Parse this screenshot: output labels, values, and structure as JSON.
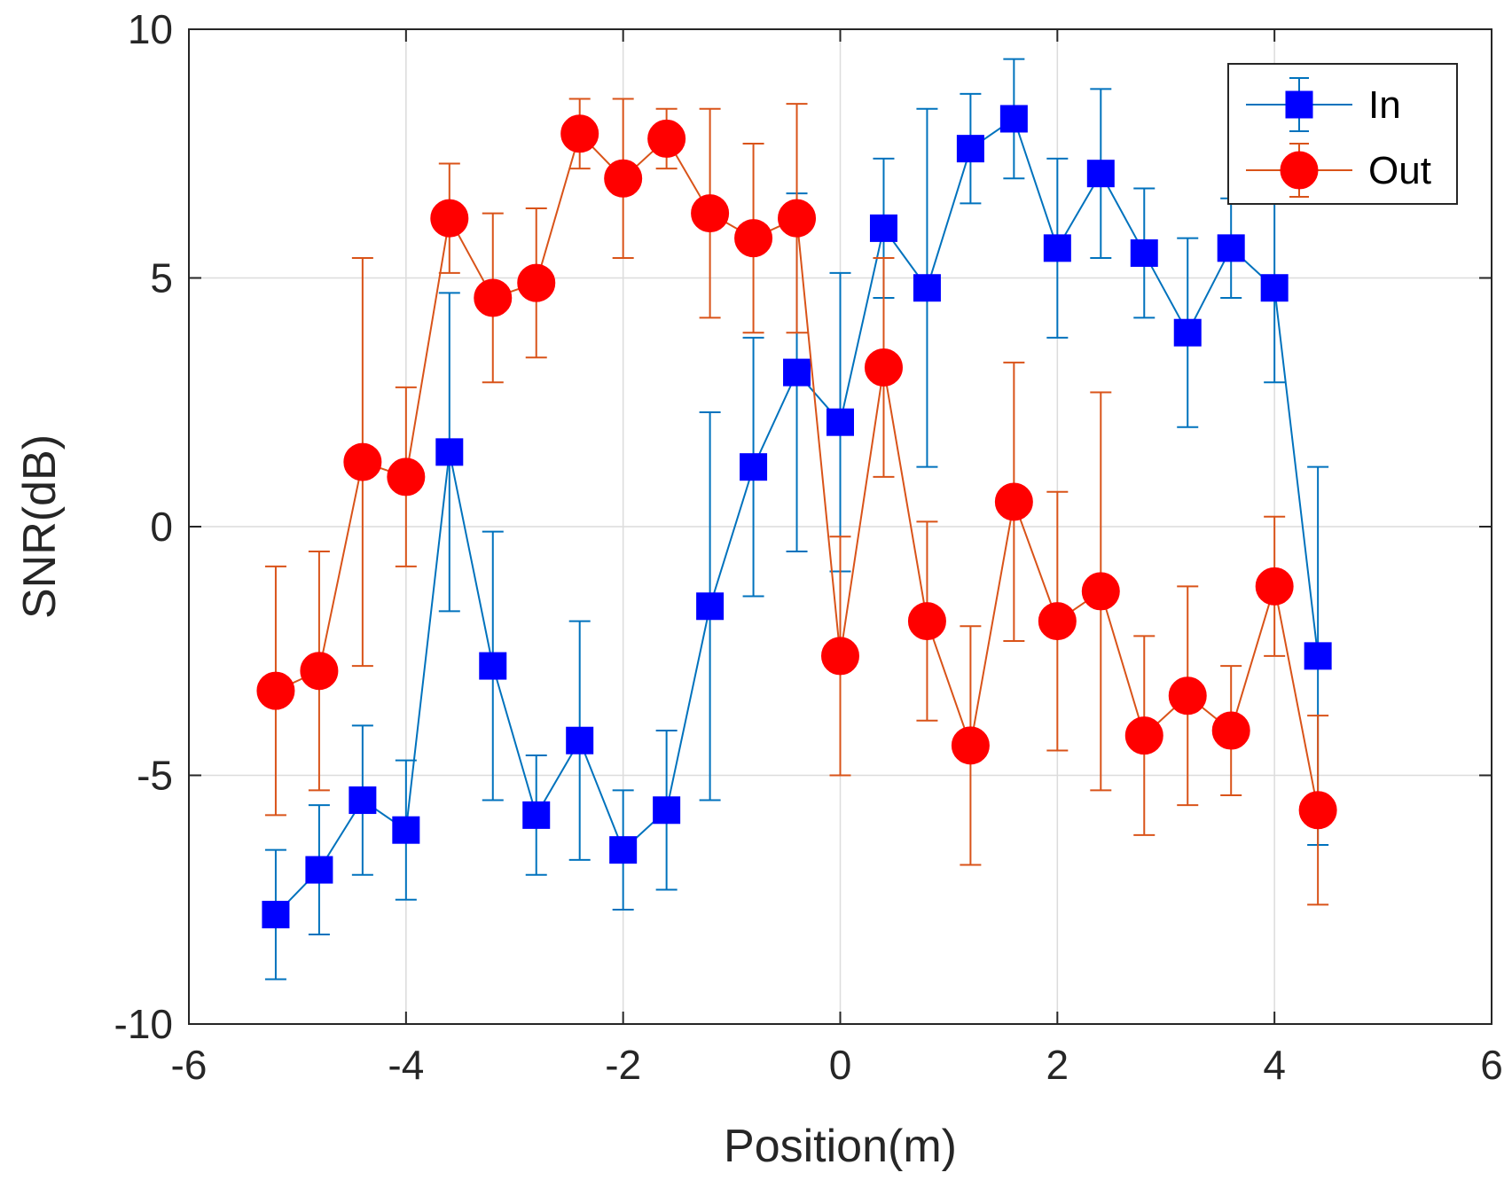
{
  "chart_data": {
    "type": "line",
    "title": "",
    "xlabel": "Position(m)",
    "ylabel": "SNR(dB)",
    "xlim": [
      -6,
      6
    ],
    "ylim": [
      -10,
      10
    ],
    "xticks": [
      -6,
      -4,
      -2,
      0,
      2,
      4,
      6
    ],
    "yticks": [
      -10,
      -5,
      0,
      5,
      10
    ],
    "xtick_labels": [
      "-6",
      "-4",
      "-2",
      "0",
      "2",
      "4",
      "6"
    ],
    "ytick_labels": [
      "-10",
      "-5",
      "0",
      "5",
      "10"
    ],
    "grid": true,
    "legend_position": "top-right",
    "x": [
      -5.2,
      -4.8,
      -4.4,
      -4.0,
      -3.6,
      -3.2,
      -2.8,
      -2.4,
      -2.0,
      -1.6,
      -1.2,
      -0.8,
      -0.4,
      0.0,
      0.4,
      0.8,
      1.2,
      1.6,
      2.0,
      2.4,
      2.8,
      3.2,
      3.6,
      4.0,
      4.4
    ],
    "series": [
      {
        "name": "In",
        "color": "#0072BD",
        "marker": "square",
        "marker_color": "#0000FF",
        "values": [
          -7.8,
          -6.9,
          -5.5,
          -6.1,
          1.5,
          -2.8,
          -5.8,
          -4.3,
          -6.5,
          -5.7,
          -1.6,
          1.2,
          3.1,
          2.1,
          6.0,
          4.8,
          7.6,
          8.2,
          5.6,
          7.1,
          5.5,
          3.9,
          5.6,
          4.8,
          -2.6
        ],
        "err_low": [
          1.3,
          1.3,
          1.5,
          1.4,
          3.2,
          2.7,
          1.2,
          2.4,
          1.2,
          1.6,
          3.9,
          2.6,
          3.6,
          3.0,
          1.4,
          3.6,
          1.1,
          1.2,
          1.8,
          1.7,
          1.3,
          1.9,
          1.0,
          1.9,
          3.8
        ],
        "err_high": [
          1.3,
          1.3,
          1.5,
          1.4,
          3.2,
          2.7,
          1.2,
          2.4,
          1.2,
          1.6,
          3.9,
          2.6,
          3.6,
          3.0,
          1.4,
          3.6,
          1.1,
          1.2,
          1.8,
          1.7,
          1.3,
          1.9,
          1.0,
          1.9,
          3.8
        ]
      },
      {
        "name": "Out",
        "color": "#D95319",
        "marker": "circle",
        "marker_color": "#FF0000",
        "values": [
          -3.3,
          -2.9,
          1.3,
          1.0,
          6.2,
          4.6,
          4.9,
          7.9,
          7.0,
          7.8,
          6.3,
          5.8,
          6.2,
          -2.6,
          3.2,
          -1.9,
          -4.4,
          0.5,
          -1.9,
          -1.3,
          -4.2,
          -3.4,
          -4.1,
          -1.2,
          -5.7
        ],
        "err_low": [
          2.5,
          2.4,
          4.1,
          1.8,
          1.1,
          1.7,
          1.5,
          0.7,
          1.6,
          0.6,
          2.1,
          1.9,
          2.3,
          2.4,
          2.2,
          2.0,
          2.4,
          2.8,
          2.6,
          4.0,
          2.0,
          2.2,
          1.3,
          1.4,
          1.9
        ],
        "err_high": [
          2.5,
          2.4,
          4.1,
          1.8,
          1.1,
          1.7,
          1.5,
          0.7,
          1.6,
          0.6,
          2.1,
          1.9,
          2.3,
          2.4,
          2.2,
          2.0,
          2.4,
          2.8,
          2.6,
          4.0,
          2.0,
          2.2,
          1.3,
          1.4,
          1.9
        ]
      }
    ]
  }
}
